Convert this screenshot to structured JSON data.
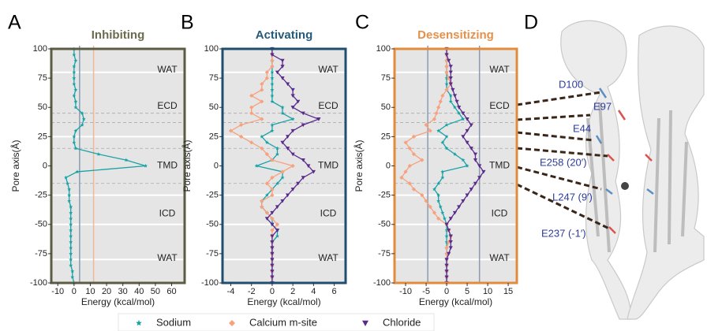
{
  "panel_letters": [
    "A",
    "B",
    "C",
    "D"
  ],
  "chart_data": [
    {
      "type": "line",
      "title": "Inhibiting",
      "title_color": "#6b6b4e",
      "frame_color": "#5c5c44",
      "xlabel": "Energy (kcal/mol)",
      "ylabel": "Pore axis(Å)",
      "xlim": [
        -14,
        68
      ],
      "xticks": [
        -10,
        0,
        10,
        20,
        30,
        40,
        50,
        60
      ],
      "ylim": [
        -100,
        100
      ],
      "yticks": [
        -100,
        -75,
        -50,
        -25,
        0,
        25,
        50,
        75,
        100
      ],
      "region_labels": [
        "WAT",
        "ECD",
        "TMD",
        "ICD",
        "WAT"
      ],
      "white_lines": [
        80,
        25,
        -25,
        -50,
        -80
      ],
      "dashed_lines": [
        45,
        37,
        15,
        -15
      ],
      "vlines": [
        {
          "value": 3.4,
          "color": "#8a9bb0"
        },
        {
          "value": 12,
          "color": "#f0b896"
        }
      ],
      "y": [
        100,
        95,
        90,
        85,
        80,
        75,
        70,
        65,
        60,
        55,
        50,
        45,
        40,
        35,
        30,
        25,
        20,
        15,
        10,
        5,
        0,
        -5,
        -10,
        -15,
        -20,
        -25,
        -30,
        -35,
        -40,
        -45,
        -50,
        -55,
        -60,
        -65,
        -70,
        -75,
        -80,
        -85,
        -90,
        -95,
        -100
      ],
      "series": [
        {
          "color": "#17a3a6",
          "marker": "star",
          "values": [
            0,
            0,
            1,
            0,
            0,
            0,
            0,
            1,
            0,
            1,
            1,
            5,
            6,
            5,
            1,
            0,
            0,
            1,
            15,
            32,
            44,
            2,
            -5,
            -4,
            -3,
            -3,
            -3,
            -2,
            -2,
            -2,
            -2,
            -2,
            -2,
            -2,
            -2,
            -2,
            -2,
            -2,
            -1,
            -1,
            0
          ]
        }
      ]
    },
    {
      "type": "line",
      "title": "Activating",
      "title_color": "#245a7a",
      "frame_color": "#1f4e6e",
      "xlabel": "Energy (kcal/mol)",
      "ylabel": "Pore axis(Å)",
      "xlim": [
        -4.8,
        7.1
      ],
      "xticks": [
        -4,
        -2,
        0,
        2,
        4,
        6
      ],
      "ylim": [
        -100,
        100
      ],
      "yticks": [
        -100,
        -75,
        -50,
        -25,
        0,
        25,
        50,
        75,
        100
      ],
      "region_labels": [
        "WAT",
        "ECD",
        "TMD",
        "ICD",
        "WAT"
      ],
      "white_lines": [
        80,
        25,
        -25,
        -50,
        -80
      ],
      "dashed_lines": [
        45,
        37,
        15,
        -15
      ],
      "vlines": [],
      "y": [
        100,
        95,
        90,
        85,
        80,
        75,
        70,
        65,
        60,
        55,
        50,
        45,
        40,
        35,
        30,
        25,
        20,
        15,
        10,
        5,
        0,
        -5,
        -10,
        -15,
        -20,
        -25,
        -30,
        -35,
        -40,
        -45,
        -50,
        -55,
        -60,
        -65,
        -70,
        -75,
        -80,
        -85,
        -90,
        -95,
        -100
      ],
      "series": [
        {
          "color": "#17a3a6",
          "marker": "star",
          "values": [
            0,
            0,
            0,
            0,
            0,
            0,
            0,
            0,
            0,
            0,
            1,
            1,
            2,
            0,
            0,
            -1,
            -0.5,
            0.5,
            0.5,
            0,
            -1.5,
            1,
            1,
            0.5,
            0,
            -0.5,
            -1,
            -1,
            -0.5,
            0,
            0,
            0.5,
            0.5,
            0,
            0,
            0,
            0,
            0,
            0,
            0,
            0
          ]
        },
        {
          "color": "#f7a17e",
          "marker": "diamond",
          "values": [
            0,
            0,
            0,
            0,
            -0.5,
            -0.5,
            -1,
            -1,
            -2,
            -1,
            -2,
            -2,
            -1,
            -3,
            -4,
            -3,
            -2,
            -1,
            -0.5,
            0,
            2,
            1,
            0,
            -0.5,
            0,
            0,
            -1,
            -1,
            -0.5,
            0,
            0.5,
            0,
            0,
            0,
            0,
            0,
            0,
            0,
            0,
            0,
            0
          ]
        },
        {
          "color": "#5a2a8c",
          "marker": "triangle",
          "values": [
            0,
            0,
            1,
            1,
            0.5,
            1,
            1.5,
            2,
            2,
            2.5,
            2,
            3,
            4.5,
            3,
            2,
            1.5,
            1,
            1.5,
            2,
            3,
            3.5,
            4,
            3,
            2.5,
            2,
            1.5,
            1,
            0.5,
            0,
            -0.5,
            0,
            0.5,
            0,
            0,
            0,
            0,
            0,
            0,
            0,
            0,
            0
          ]
        }
      ]
    },
    {
      "type": "line",
      "title": "Desensitizing",
      "title_color": "#e6904a",
      "frame_color": "#e38b3c",
      "xlabel": "Energy (kcal/mol)",
      "ylabel": "Pore axis(Å)",
      "xlim": [
        -12.7,
        17.1
      ],
      "xticks": [
        -10,
        -5,
        0,
        5,
        10,
        15
      ],
      "ylim": [
        -100,
        100
      ],
      "yticks": [
        -100,
        -75,
        -50,
        -25,
        0,
        25,
        50,
        75,
        100
      ],
      "region_labels": [
        "WAT",
        "ECD",
        "TMD",
        "ICD",
        "WAT"
      ],
      "white_lines": [
        80,
        25,
        -25,
        -50,
        -80
      ],
      "dashed_lines": [
        45,
        37,
        15,
        -15
      ],
      "vlines": [
        {
          "value": -4.6,
          "color": "#8a9bb0"
        },
        {
          "value": 8,
          "color": "#8a9bb0"
        }
      ],
      "y": [
        100,
        95,
        90,
        85,
        80,
        75,
        70,
        65,
        60,
        55,
        50,
        45,
        40,
        35,
        30,
        25,
        20,
        15,
        10,
        5,
        0,
        -5,
        -10,
        -15,
        -20,
        -25,
        -30,
        -35,
        -40,
        -45,
        -50,
        -55,
        -60,
        -65,
        -70,
        -75,
        -80,
        -85,
        -90,
        -95,
        -100
      ],
      "series": [
        {
          "color": "#17a3a6",
          "marker": "star",
          "values": [
            0,
            0,
            0,
            0,
            0,
            0,
            0,
            0,
            1,
            1,
            2,
            3,
            4,
            0,
            -2,
            0,
            -1,
            0,
            2,
            4,
            5,
            -1,
            -1,
            -2,
            -3,
            -2,
            -2,
            -1.5,
            -1,
            -0.5,
            0,
            0,
            0,
            0,
            0,
            0,
            0,
            0,
            0,
            0,
            0
          ]
        },
        {
          "color": "#f7a17e",
          "marker": "diamond",
          "values": [
            0,
            0,
            0,
            0,
            0,
            0.5,
            1,
            0,
            -1,
            -1.5,
            -2,
            -2.5,
            -3,
            -5,
            -4,
            -8,
            -10,
            -9,
            -8,
            -6,
            -9,
            -10,
            -11,
            -9,
            -8,
            -6,
            -5,
            -4,
            -3,
            -2,
            0,
            0.5,
            1,
            0.5,
            0,
            0,
            0,
            0,
            0,
            0,
            0
          ]
        },
        {
          "color": "#5a2a8c",
          "marker": "triangle",
          "values": [
            0,
            0,
            0.5,
            1,
            1,
            1,
            1,
            1.5,
            2,
            2.5,
            3,
            4,
            5,
            6,
            5,
            4,
            5,
            6,
            7,
            7,
            8,
            9,
            8,
            7,
            6,
            5,
            4,
            3,
            2,
            1,
            0,
            0.5,
            1,
            1,
            1,
            0.5,
            0,
            0,
            0,
            0,
            0
          ]
        }
      ]
    }
  ],
  "legend": [
    {
      "name": "Sodium",
      "color": "#17a3a6",
      "marker": "star"
    },
    {
      "name": "Calcium m-site",
      "color": "#f7a17e",
      "marker": "diamond"
    },
    {
      "name": "Chloride",
      "color": "#5a2a8c",
      "marker": "triangle"
    }
  ],
  "structure": {
    "labels": [
      "D100",
      "E97",
      "E44",
      "E258 (20′)",
      "L247 (9′)",
      "E237 (-1′)"
    ]
  }
}
